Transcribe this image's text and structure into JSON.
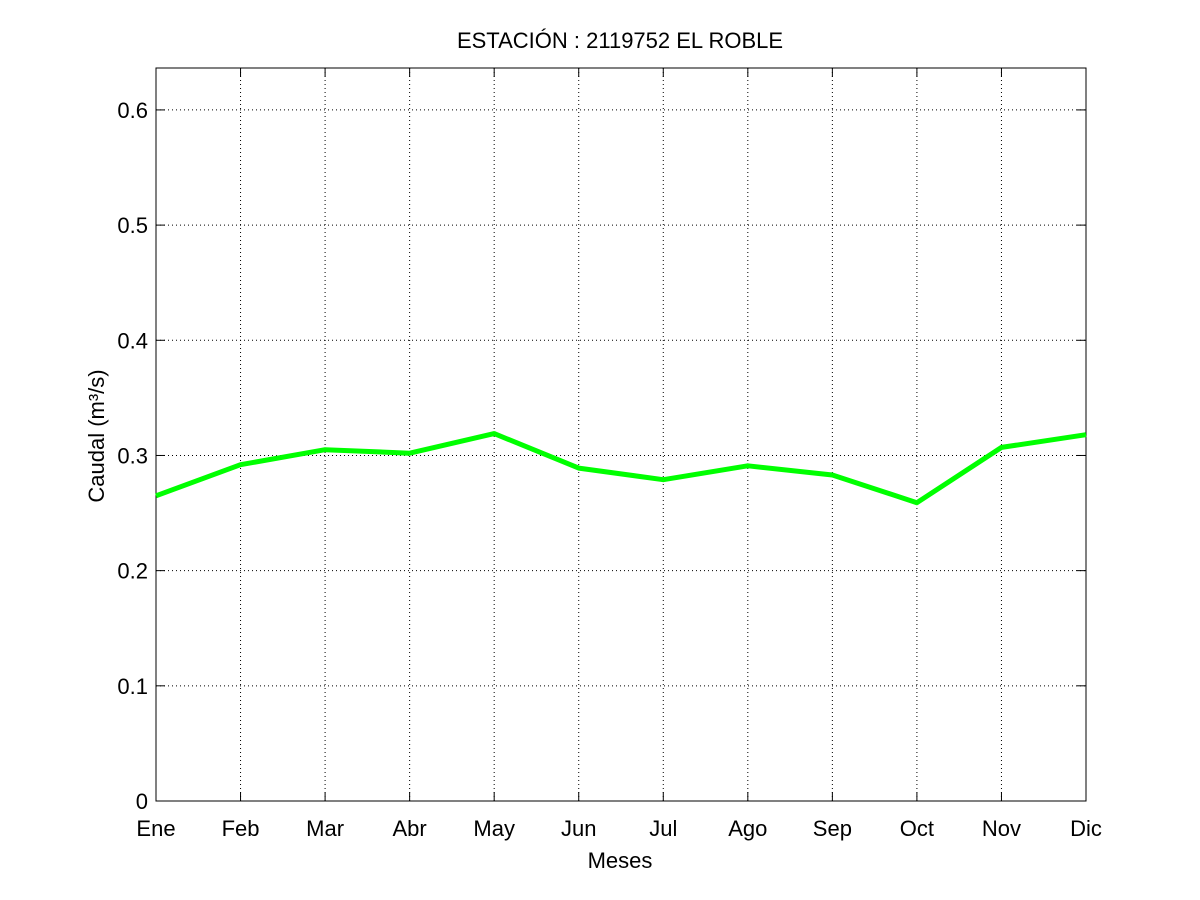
{
  "chart_data": {
    "type": "line",
    "title": "ESTACIÓN :  2119752  EL ROBLE",
    "xlabel": "Meses",
    "ylabel": "Caudal (m³/s)",
    "categories": [
      "Ene",
      "Feb",
      "Mar",
      "Abr",
      "May",
      "Jun",
      "Jul",
      "Ago",
      "Sep",
      "Oct",
      "Nov",
      "Dic"
    ],
    "yticks": [
      "0",
      "0.1",
      "0.2",
      "0.3",
      "0.4",
      "0.5",
      "0.6"
    ],
    "ylim": [
      0,
      0.6364
    ],
    "grid": true,
    "series": [
      {
        "color": "#00ff00",
        "values": [
          0.265,
          0.292,
          0.305,
          0.302,
          0.319,
          0.289,
          0.279,
          0.291,
          0.283,
          0.259,
          0.307,
          0.318
        ]
      }
    ]
  }
}
